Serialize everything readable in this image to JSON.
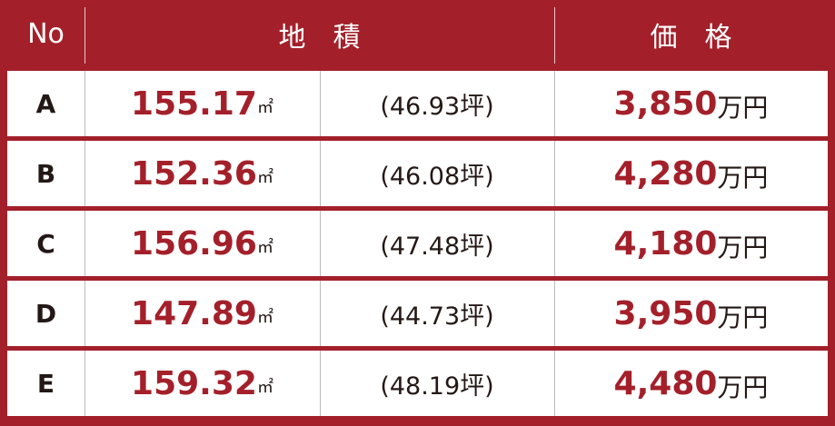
{
  "header": {
    "no": "No",
    "area": "地　積",
    "price": "価　格"
  },
  "rows": [
    {
      "no": "A",
      "area": "155.17",
      "area_unit": "㎡",
      "tsubo": "(46.93坪)",
      "price": "3,850",
      "price_unit": "万円"
    },
    {
      "no": "B",
      "area": "152.36",
      "area_unit": "㎡",
      "tsubo": "(46.08坪)",
      "price": "4,280",
      "price_unit": "万円"
    },
    {
      "no": "C",
      "area": "156.96",
      "area_unit": "㎡",
      "tsubo": "(47.48坪)",
      "price": "4,180",
      "price_unit": "万円"
    },
    {
      "no": "D",
      "area": "147.89",
      "area_unit": "㎡",
      "tsubo": "(44.73坪)",
      "price": "3,950",
      "price_unit": "万円"
    },
    {
      "no": "E",
      "area": "159.32",
      "area_unit": "㎡",
      "tsubo": "(48.19坪)",
      "price": "4,480",
      "price_unit": "万円"
    }
  ]
}
